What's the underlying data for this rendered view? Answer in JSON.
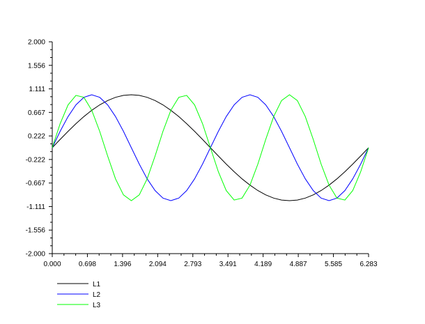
{
  "chart_data": {
    "type": "line",
    "title": "",
    "xlabel": "",
    "ylabel": "",
    "xlim": [
      0,
      6.283
    ],
    "ylim": [
      -2.0,
      2.0
    ],
    "grid": false,
    "legend_placement": "bottom-left",
    "x_ticks": [
      "0.000",
      "0.698",
      "1.396",
      "2.094",
      "2.793",
      "3.491",
      "4.189",
      "4.887",
      "5.585",
      "6.283"
    ],
    "y_ticks": [
      "2.000",
      "1.556",
      "1.111",
      "0.667",
      "0.222",
      "-0.222",
      "-0.667",
      "-1.111",
      "-1.556",
      "-2.000"
    ],
    "x": [
      0,
      0.157,
      0.314,
      0.471,
      0.628,
      0.785,
      0.942,
      1.1,
      1.257,
      1.414,
      1.571,
      1.728,
      1.885,
      2.042,
      2.199,
      2.356,
      2.513,
      2.67,
      2.827,
      2.985,
      3.142,
      3.299,
      3.456,
      3.613,
      3.77,
      3.927,
      4.084,
      4.241,
      4.398,
      4.555,
      4.712,
      4.869,
      5.027,
      5.184,
      5.341,
      5.498,
      5.655,
      5.812,
      5.969,
      6.126,
      6.283
    ],
    "series": [
      {
        "name": "L1",
        "color": "#000000",
        "values": [
          0,
          0.156,
          0.309,
          0.454,
          0.588,
          0.707,
          0.809,
          0.891,
          0.951,
          0.988,
          1,
          0.988,
          0.951,
          0.891,
          0.809,
          0.707,
          0.588,
          0.454,
          0.309,
          0.156,
          0,
          -0.156,
          -0.309,
          -0.454,
          -0.588,
          -0.707,
          -0.809,
          -0.891,
          -0.951,
          -0.988,
          -1,
          -0.988,
          -0.951,
          -0.891,
          -0.809,
          -0.707,
          -0.588,
          -0.454,
          -0.309,
          -0.156,
          0
        ]
      },
      {
        "name": "L2",
        "color": "#0000ff",
        "values": [
          0,
          0.309,
          0.588,
          0.809,
          0.951,
          1,
          0.951,
          0.809,
          0.588,
          0.309,
          0,
          -0.309,
          -0.588,
          -0.809,
          -0.951,
          -1,
          -0.951,
          -0.809,
          -0.588,
          -0.309,
          0,
          0.309,
          0.588,
          0.809,
          0.951,
          1,
          0.951,
          0.809,
          0.588,
          0.309,
          0,
          -0.309,
          -0.588,
          -0.809,
          -0.951,
          -1,
          -0.951,
          -0.809,
          -0.588,
          -0.309,
          0
        ]
      },
      {
        "name": "L3",
        "color": "#00ff00",
        "values": [
          0,
          0.454,
          0.809,
          0.988,
          0.951,
          0.707,
          0.309,
          -0.156,
          -0.588,
          -0.891,
          -1,
          -0.891,
          -0.588,
          -0.156,
          0.309,
          0.707,
          0.951,
          0.988,
          0.809,
          0.454,
          0,
          -0.454,
          -0.809,
          -0.988,
          -0.951,
          -0.707,
          -0.309,
          0.156,
          0.588,
          0.891,
          1,
          0.891,
          0.588,
          0.156,
          -0.309,
          -0.707,
          -0.951,
          -0.988,
          -0.809,
          -0.454,
          0
        ]
      }
    ]
  }
}
